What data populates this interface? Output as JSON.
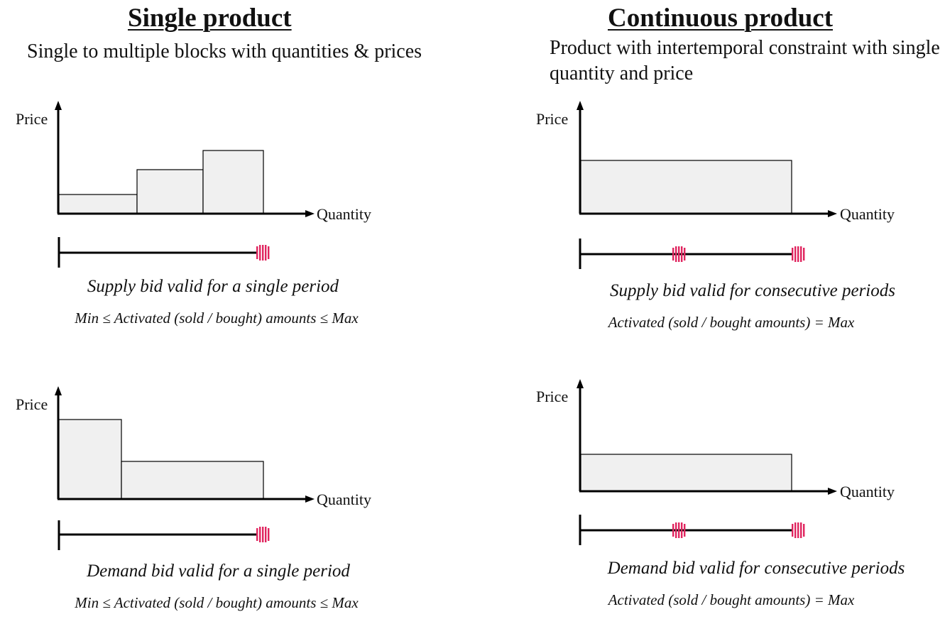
{
  "left": {
    "heading": "Single product",
    "description": "Single to multiple blocks with quantities & prices",
    "supply": {
      "y_label": "Price",
      "x_label": "Quantity",
      "caption": "Supply bid valid for a single period",
      "formula": "Min ≤ Activated (sold / bought) amounts ≤ Max"
    },
    "demand": {
      "y_label": "Price",
      "x_label": "Quantity",
      "caption": "Demand bid valid for a single period",
      "formula": "Min ≤ Activated (sold / bought) amounts ≤ Max"
    }
  },
  "right": {
    "heading": "Continuous product",
    "description": "Product with intertemporal constraint with single quantity and price",
    "supply": {
      "y_label": "Price",
      "x_label": "Quantity",
      "caption": "Supply bid valid for consecutive periods",
      "formula": "Activated (sold / bought amounts) = Max"
    },
    "demand": {
      "y_label": "Price",
      "x_label": "Quantity",
      "caption": "Demand bid valid for consecutive periods",
      "formula": "Activated (sold / bought amounts) = Max"
    }
  },
  "colors": {
    "block_fill": "#f0f0f0",
    "axis": "#000000",
    "marker": "#e0245e"
  }
}
